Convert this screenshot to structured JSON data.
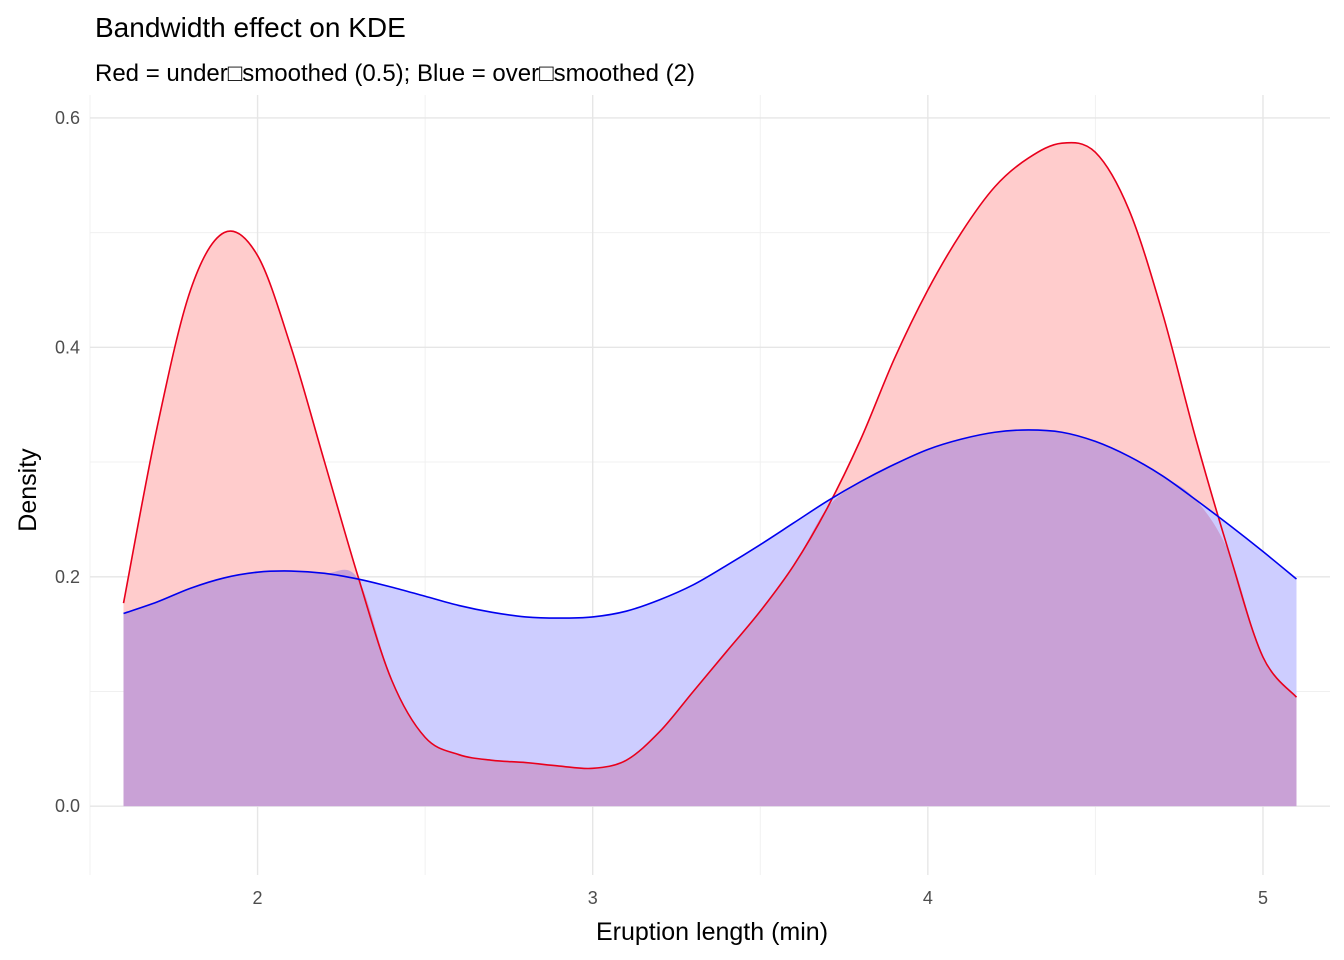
{
  "chart_data": {
    "type": "area",
    "title": "Bandwidth effect on KDE",
    "subtitle": "Red = under□smoothed (0.5); Blue = over□smoothed (2)",
    "xlabel": "Eruption length (min)",
    "ylabel": "Density",
    "xlim": [
      1.5,
      5.2
    ],
    "ylim": [
      -0.06,
      0.62
    ],
    "x_ticks": [
      2,
      3,
      4,
      5
    ],
    "x_tick_labels": [
      "2",
      "3",
      "4",
      "5"
    ],
    "y_ticks": [
      0.0,
      0.2,
      0.4,
      0.6
    ],
    "y_tick_labels": [
      "0.0",
      "0.2",
      "0.4",
      "0.6"
    ],
    "grid": true,
    "legend": "none",
    "series": [
      {
        "color": "#e41a1c",
        "stroke": "#e8001c",
        "fill": "#ffcccc",
        "x": [
          1.6,
          1.7,
          1.8,
          1.9,
          2.0,
          2.1,
          2.2,
          2.3,
          2.4,
          2.5,
          2.6,
          2.7,
          2.8,
          2.9,
          3.0,
          3.1,
          3.2,
          3.3,
          3.4,
          3.5,
          3.6,
          3.7,
          3.8,
          3.9,
          4.0,
          4.1,
          4.2,
          4.3,
          4.4,
          4.5,
          4.6,
          4.7,
          4.8,
          4.9,
          5.0,
          5.1
        ],
        "y": [
          0.177,
          0.33,
          0.45,
          0.5,
          0.48,
          0.4,
          0.3,
          0.2,
          0.11,
          0.06,
          0.045,
          0.04,
          0.038,
          0.035,
          0.033,
          0.04,
          0.065,
          0.1,
          0.135,
          0.17,
          0.21,
          0.26,
          0.32,
          0.39,
          0.45,
          0.5,
          0.54,
          0.565,
          0.578,
          0.57,
          0.52,
          0.43,
          0.32,
          0.22,
          0.13,
          0.095
        ]
      },
      {
        "color": "#0000ff",
        "stroke": "#0000ee",
        "fill": "#ccccff",
        "x": [
          1.6,
          1.7,
          1.8,
          1.9,
          2.0,
          2.1,
          2.2,
          2.3,
          2.4,
          2.5,
          2.6,
          2.7,
          2.8,
          2.9,
          3.0,
          3.1,
          3.2,
          3.3,
          3.4,
          3.5,
          3.6,
          3.7,
          3.8,
          3.9,
          4.0,
          4.1,
          4.2,
          4.3,
          4.4,
          4.5,
          4.6,
          4.7,
          4.8,
          4.9,
          5.0,
          5.1
        ],
        "y": [
          0.168,
          0.178,
          0.19,
          0.199,
          0.204,
          0.205,
          0.203,
          0.198,
          0.191,
          0.183,
          0.175,
          0.169,
          0.165,
          0.164,
          0.165,
          0.17,
          0.18,
          0.193,
          0.21,
          0.228,
          0.247,
          0.266,
          0.283,
          0.298,
          0.311,
          0.32,
          0.326,
          0.328,
          0.326,
          0.318,
          0.305,
          0.288,
          0.267,
          0.245,
          0.222,
          0.198
        ]
      }
    ],
    "overlap_fill": "#c9a1d6"
  }
}
